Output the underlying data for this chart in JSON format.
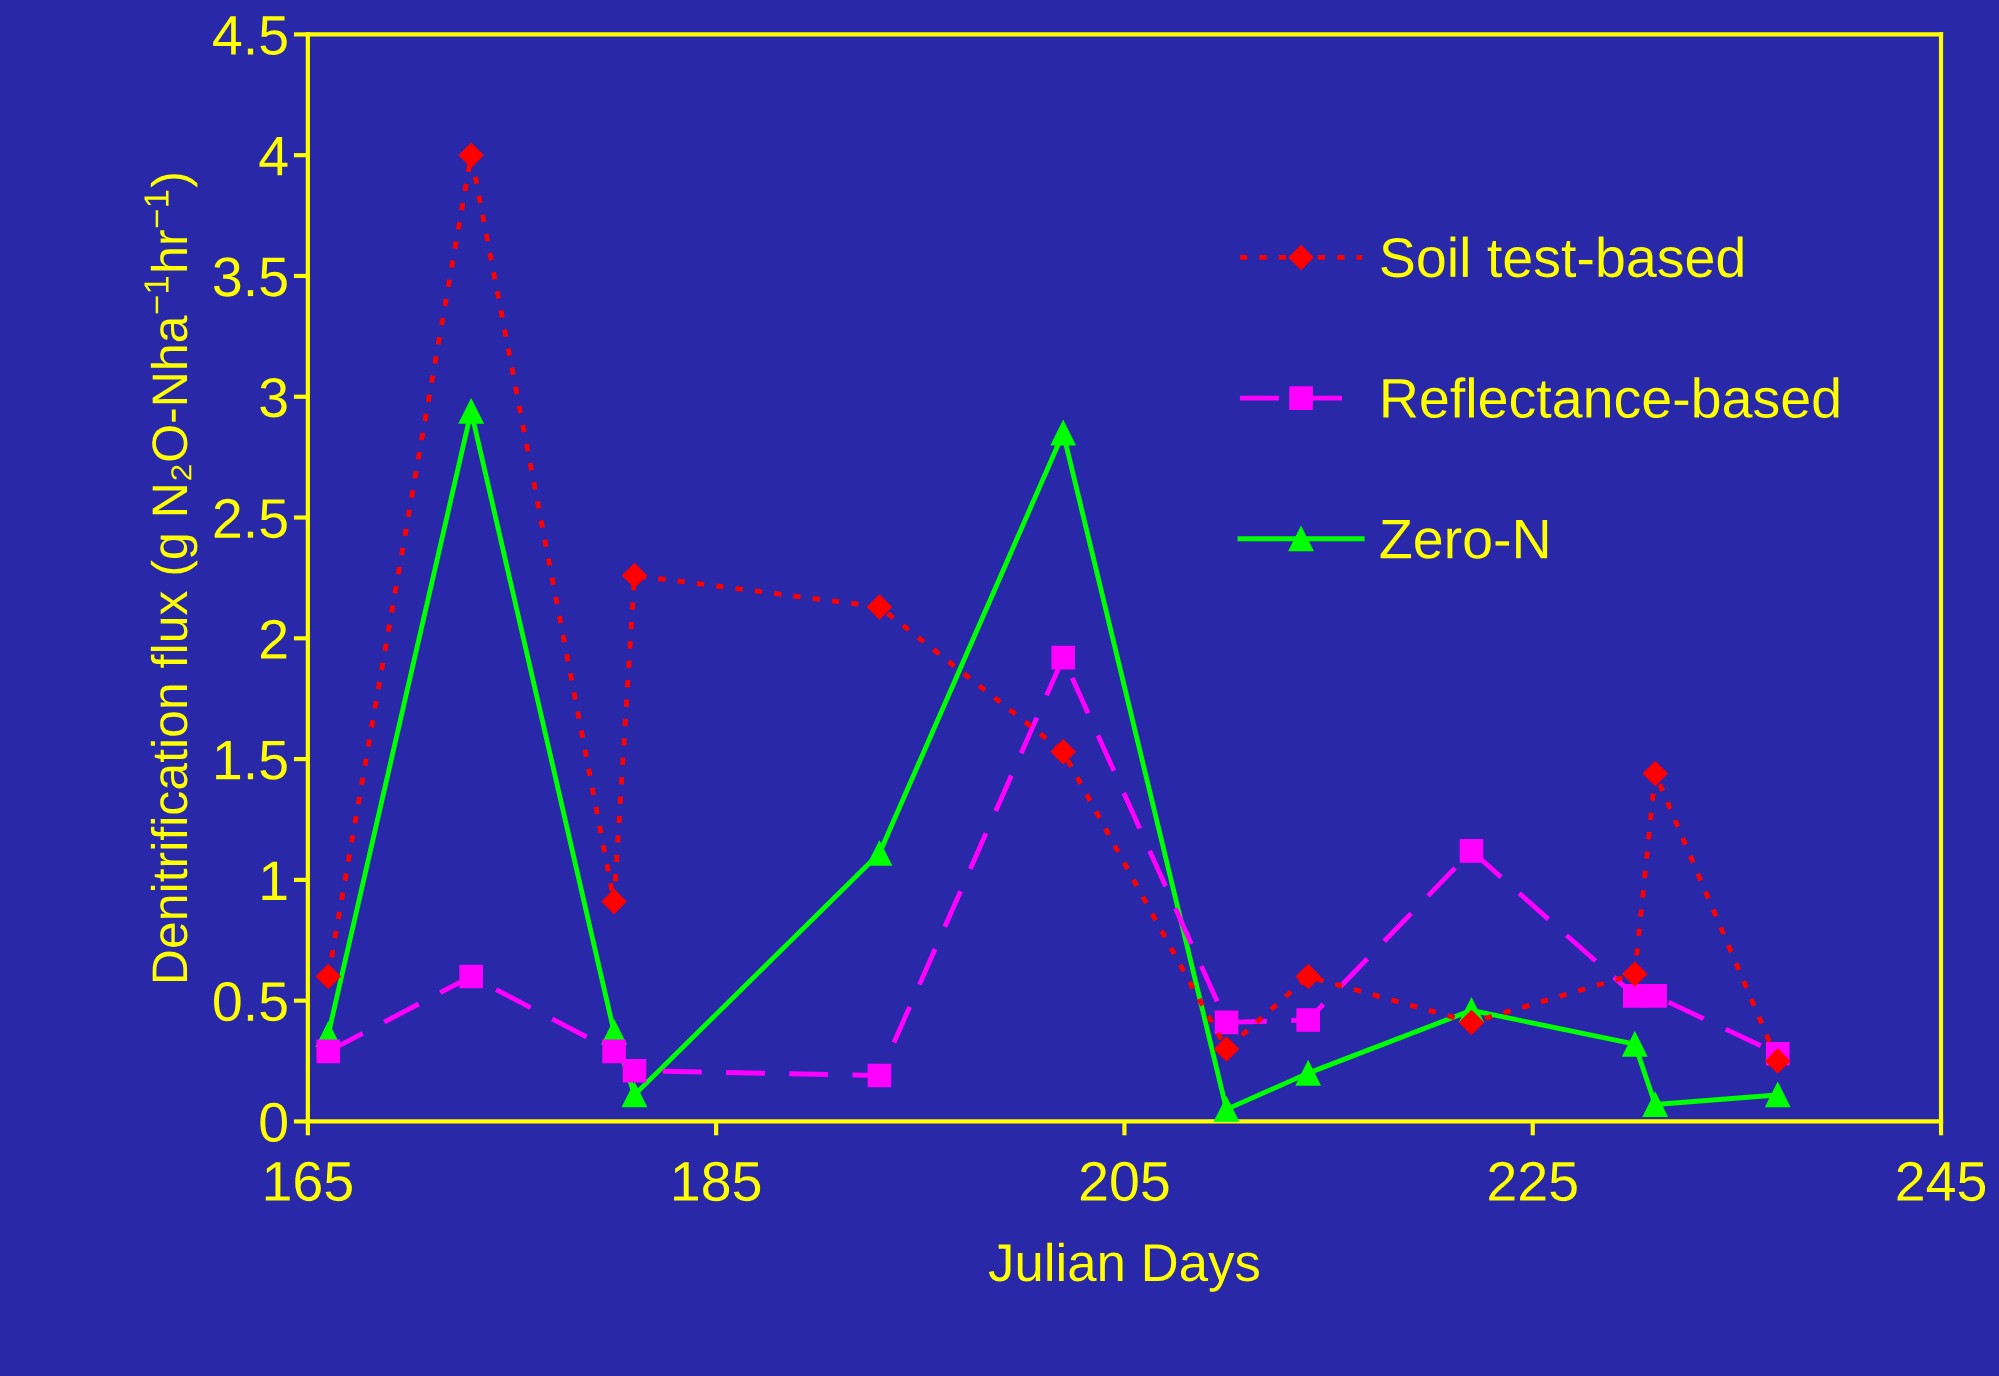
{
  "chart_data": {
    "type": "line",
    "xlabel": "Julian Days",
    "ylabel": "Denitrification flux (g N₂O-Nha$^{−1}$hr$^{−1}$)",
    "x": [
      166,
      173,
      180,
      181,
      193,
      202,
      210,
      214,
      222,
      230,
      231,
      237
    ],
    "series": [
      {
        "name": "Soil test-based",
        "color": "#ff0000",
        "marker": "diamond",
        "line_style": "dotted",
        "values": [
          0.6,
          4.0,
          0.91,
          2.26,
          2.13,
          1.53,
          0.3,
          0.6,
          0.41,
          0.61,
          1.44,
          0.25
        ]
      },
      {
        "name": "Reflectance-based",
        "color": "#ff00ff",
        "marker": "square",
        "line_style": "dashed",
        "values": [
          0.29,
          0.6,
          0.29,
          0.21,
          0.19,
          1.92,
          0.41,
          0.42,
          1.12,
          0.52,
          0.52,
          0.28
        ]
      },
      {
        "name": "Zero-N",
        "color": "#00ff00",
        "marker": "triangle",
        "line_style": "solid",
        "values": [
          0.36,
          2.94,
          0.37,
          0.11,
          1.11,
          2.85,
          0.05,
          0.2,
          0.46,
          0.32,
          0.07,
          0.11
        ]
      }
    ],
    "xlim": [
      165,
      245
    ],
    "xticks": [
      165,
      185,
      205,
      225,
      245
    ],
    "ylim": [
      0,
      4.5
    ],
    "yticks": [
      0,
      0.5,
      1,
      1.5,
      2,
      2.5,
      3,
      3.5,
      4,
      4.5
    ],
    "grid": false,
    "legend": "top right"
  }
}
